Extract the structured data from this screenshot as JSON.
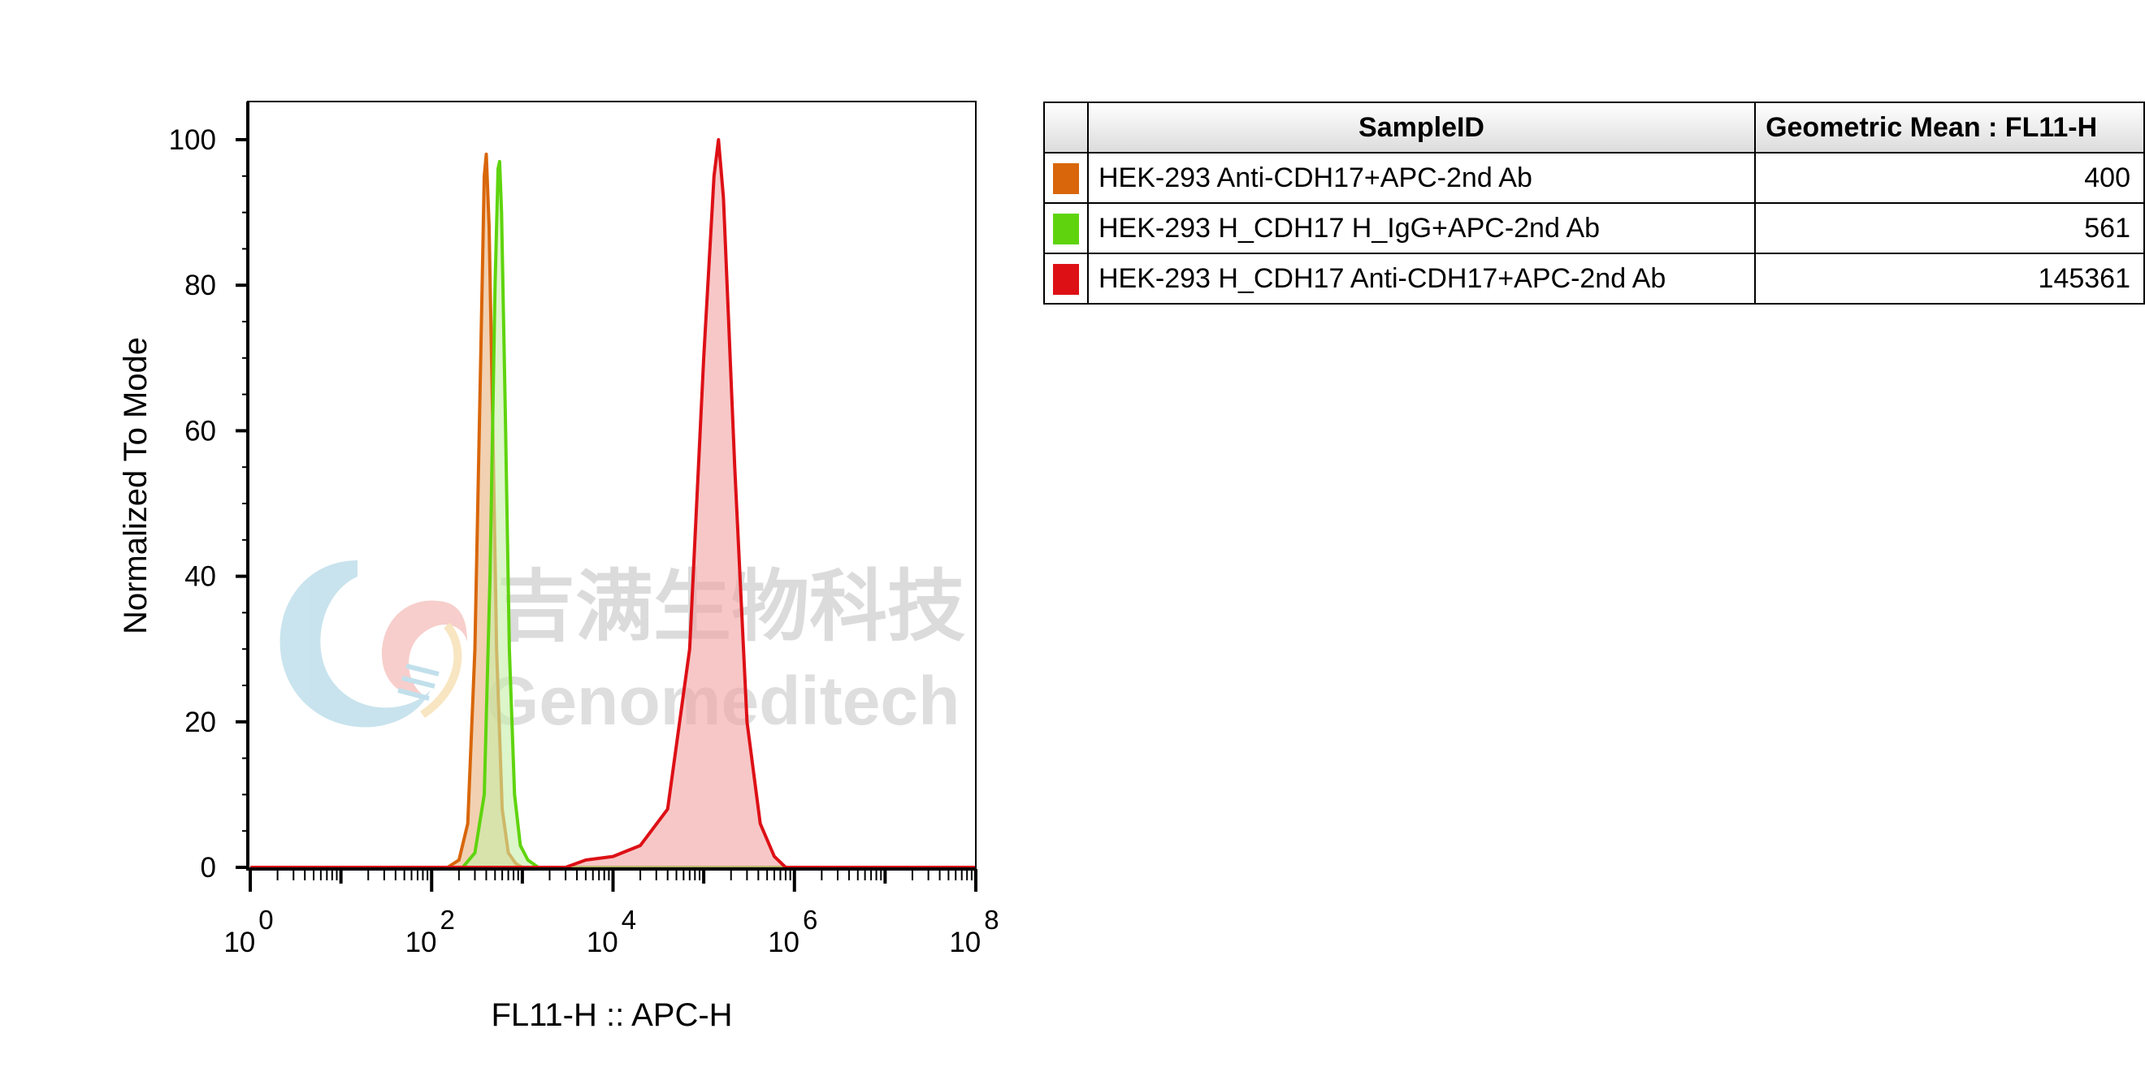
{
  "watermark": {
    "cn": "吉满生物科技",
    "en": "Genomeditech"
  },
  "chart_data": {
    "type": "area",
    "xlabel": "FL11-H :: APC-H",
    "ylabel": "Normalized To Mode",
    "xscale": "log10",
    "xlim": [
      1,
      100000000
    ],
    "ylim": [
      0,
      100
    ],
    "y_ticks": [
      "0",
      "20",
      "40",
      "60",
      "80",
      "100"
    ],
    "x_ticks": [
      {
        "base": "10",
        "exp": "0"
      },
      {
        "base": "10",
        "exp": "2"
      },
      {
        "base": "10",
        "exp": "4"
      },
      {
        "base": "10",
        "exp": "6"
      },
      {
        "base": "10",
        "exp": "8"
      }
    ],
    "series": [
      {
        "name": "HEK-293 Anti-CDH17+APC-2nd Ab",
        "color": "#d9660a",
        "fill": "#e8b27f",
        "x": [
          1,
          150,
          200,
          250,
          300,
          350,
          380,
          400,
          430,
          470,
          520,
          600,
          700,
          850,
          1000,
          100000000
        ],
        "y": [
          0,
          0,
          1,
          6,
          30,
          72,
          95,
          98,
          88,
          62,
          30,
          8,
          2,
          0.5,
          0,
          0
        ]
      },
      {
        "name": "HEK-293 H_CDH17 H_IgG+APC-2nd Ab",
        "color": "#5fd40e",
        "fill": "#c7eea6",
        "x": [
          1,
          220,
          300,
          380,
          440,
          500,
          540,
          561,
          590,
          650,
          720,
          820,
          950,
          1150,
          1500,
          100000000
        ],
        "y": [
          0,
          0,
          2,
          10,
          40,
          80,
          96,
          97,
          90,
          62,
          30,
          10,
          3,
          1,
          0,
          0
        ]
      },
      {
        "name": "HEK-293 H_CDH17 Anti-CDH17+APC-2nd Ab",
        "color": "#dd1016",
        "fill": "#f2a2a2",
        "x": [
          1,
          3000,
          5000,
          10000,
          20000,
          40000,
          70000,
          100000,
          130000,
          145361,
          165000,
          220000,
          300000,
          420000,
          600000,
          800000,
          100000000
        ],
        "y": [
          0,
          0,
          1,
          1.5,
          3,
          8,
          30,
          70,
          95,
          100,
          92,
          55,
          20,
          6,
          1.5,
          0,
          0
        ]
      }
    ]
  },
  "legend_table": {
    "header_id": "SampleID",
    "header_gm": "Geometric Mean : FL11-H",
    "rows": [
      {
        "name": "HEK-293 Anti-CDH17+APC-2nd Ab",
        "value": "400",
        "color": "#d9660a"
      },
      {
        "name": "HEK-293 H_CDH17 H_IgG+APC-2nd Ab",
        "value": "561",
        "color": "#5fd40e"
      },
      {
        "name": "HEK-293 H_CDH17 Anti-CDH17+APC-2nd Ab",
        "value": "145361",
        "color": "#dd1016"
      }
    ]
  }
}
